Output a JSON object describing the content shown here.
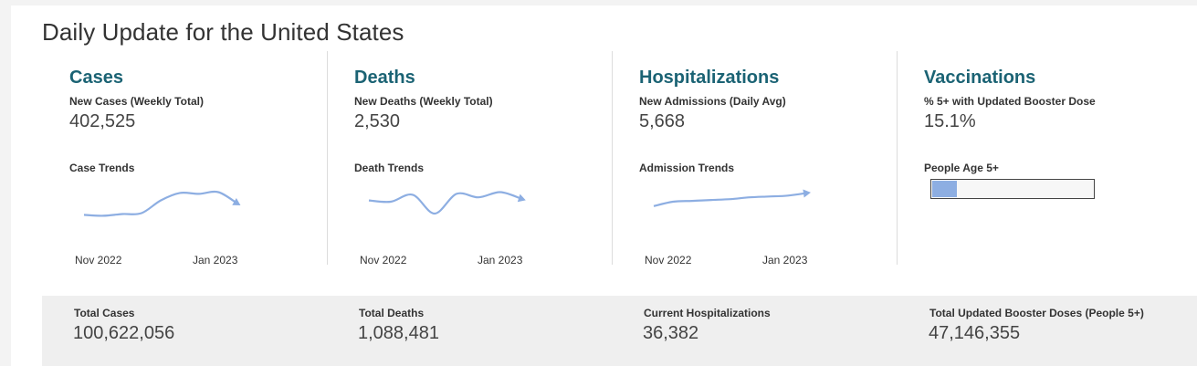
{
  "page_title": "Daily Update for the United States",
  "accent_color": "#1b6374",
  "trend_color": "#8daee2",
  "sections": [
    {
      "title": "Cases",
      "metric_label": "New Cases (Weekly Total)",
      "metric_value": "402,525",
      "trend_label": "Case Trends",
      "tick_start": "Nov 2022",
      "tick_end": "Jan 2023",
      "trend": [
        0.22,
        0.2,
        0.24,
        0.26,
        0.55,
        0.72,
        0.7,
        0.74,
        0.48
      ]
    },
    {
      "title": "Deaths",
      "metric_label": "New Deaths (Weekly Total)",
      "metric_value": "2,530",
      "trend_label": "Death Trends",
      "tick_start": "Nov 2022",
      "tick_end": "Jan 2023",
      "trend": [
        0.55,
        0.52,
        0.68,
        0.25,
        0.7,
        0.62,
        0.74,
        0.58
      ]
    },
    {
      "title": "Hospitalizations",
      "metric_label": "New Admissions (Daily Avg)",
      "metric_value": "5,668",
      "trend_label": "Admission Trends",
      "tick_start": "Nov 2022",
      "tick_end": "Jan 2023",
      "trend": [
        0.42,
        0.52,
        0.54,
        0.56,
        0.58,
        0.62,
        0.64,
        0.66,
        0.72
      ]
    },
    {
      "title": "Vaccinations",
      "metric_label": "% 5+ with Updated Booster Dose",
      "metric_value": "15.1%",
      "trend_label": "People Age 5+",
      "progress_fraction": 0.151
    }
  ],
  "totals": [
    {
      "label": "Total Cases",
      "value": "100,622,056"
    },
    {
      "label": "Total Deaths",
      "value": "1,088,481"
    },
    {
      "label": "Current Hospitalizations",
      "value": "36,382"
    },
    {
      "label": "Total Updated Booster Doses (People 5+)",
      "value": "47,146,355"
    }
  ]
}
